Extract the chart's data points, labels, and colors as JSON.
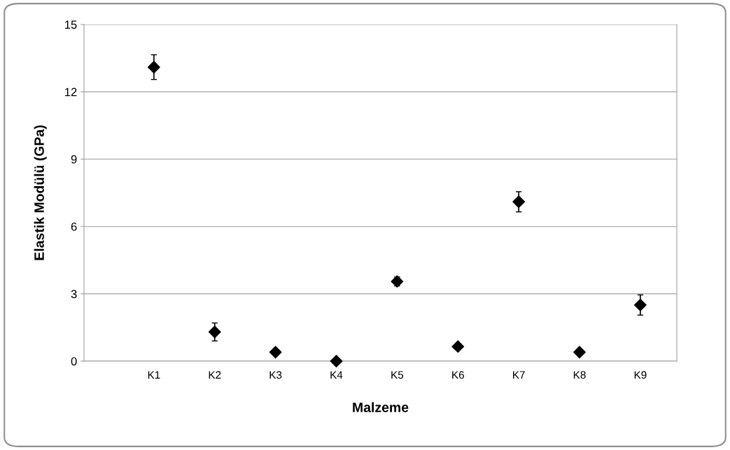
{
  "chart_data": {
    "type": "scatter",
    "xlabel": "Malzeme",
    "ylabel": "Elastik Modülü (GPa)",
    "categories": [
      "K1",
      "K2",
      "K3",
      "K4",
      "K5",
      "K6",
      "K7",
      "K8",
      "K9"
    ],
    "values": [
      13.1,
      1.3,
      0.4,
      0.0,
      3.55,
      0.65,
      7.1,
      0.4,
      2.5
    ],
    "errors": [
      0.55,
      0.4,
      null,
      null,
      0.2,
      null,
      0.45,
      null,
      0.45
    ],
    "color": "#000000",
    "marker": "diamond",
    "ylim": [
      0,
      15
    ],
    "yticks": [
      0,
      3,
      6,
      9,
      12,
      15
    ],
    "grid": "y",
    "legend": false
  }
}
